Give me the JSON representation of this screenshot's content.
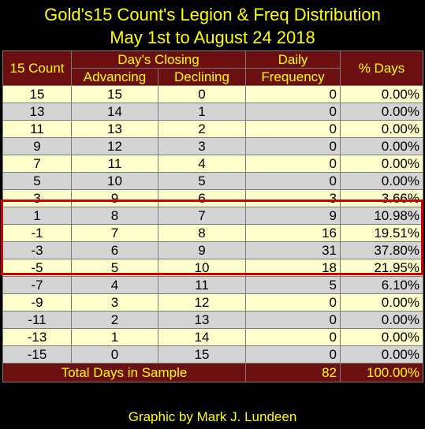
{
  "title": {
    "line1": "Gold's15 Count's Legion & Freq Distribution",
    "line2": "May 1st to August 24 2018"
  },
  "headers": {
    "count": "15 Count",
    "closing": "Day's Closing",
    "advancing": "Advancing",
    "declining": "Declining",
    "daily_line1": "Daily",
    "daily_line2": "Frequency",
    "pct_days": "% Days"
  },
  "rows": [
    {
      "count": "15",
      "adv": "15",
      "dec": "0",
      "freq": "0",
      "pct": "0.00%"
    },
    {
      "count": "13",
      "adv": "14",
      "dec": "1",
      "freq": "0",
      "pct": "0.00%"
    },
    {
      "count": "11",
      "adv": "13",
      "dec": "2",
      "freq": "0",
      "pct": "0.00%"
    },
    {
      "count": "9",
      "adv": "12",
      "dec": "3",
      "freq": "0",
      "pct": "0.00%"
    },
    {
      "count": "7",
      "adv": "11",
      "dec": "4",
      "freq": "0",
      "pct": "0.00%"
    },
    {
      "count": "5",
      "adv": "10",
      "dec": "5",
      "freq": "0",
      "pct": "0.00%"
    },
    {
      "count": "3",
      "adv": "9",
      "dec": "6",
      "freq": "3",
      "pct": "3.66%"
    },
    {
      "count": "1",
      "adv": "8",
      "dec": "7",
      "freq": "9",
      "pct": "10.98%"
    },
    {
      "count": "-1",
      "adv": "7",
      "dec": "8",
      "freq": "16",
      "pct": "19.51%"
    },
    {
      "count": "-3",
      "adv": "6",
      "dec": "9",
      "freq": "31",
      "pct": "37.80%"
    },
    {
      "count": "-5",
      "adv": "5",
      "dec": "10",
      "freq": "18",
      "pct": "21.95%"
    },
    {
      "count": "-7",
      "adv": "4",
      "dec": "11",
      "freq": "5",
      "pct": "6.10%"
    },
    {
      "count": "-9",
      "adv": "3",
      "dec": "12",
      "freq": "0",
      "pct": "0.00%"
    },
    {
      "count": "-11",
      "adv": "2",
      "dec": "13",
      "freq": "0",
      "pct": "0.00%"
    },
    {
      "count": "-13",
      "adv": "1",
      "dec": "14",
      "freq": "0",
      "pct": "0.00%"
    },
    {
      "count": "-15",
      "adv": "0",
      "dec": "15",
      "freq": "0",
      "pct": "0.00%"
    }
  ],
  "total": {
    "label": "Total Days in Sample",
    "freq": "82",
    "pct": "100.00%"
  },
  "footer": "Graphic by Mark J. Lundeen",
  "colors": {
    "background": "#000000",
    "header_bg": "#6b0f10",
    "header_text": "#ffff00",
    "row_odd": "#ffffcc",
    "row_even": "#d4d4d4",
    "highlight_border": "#cc0000"
  }
}
